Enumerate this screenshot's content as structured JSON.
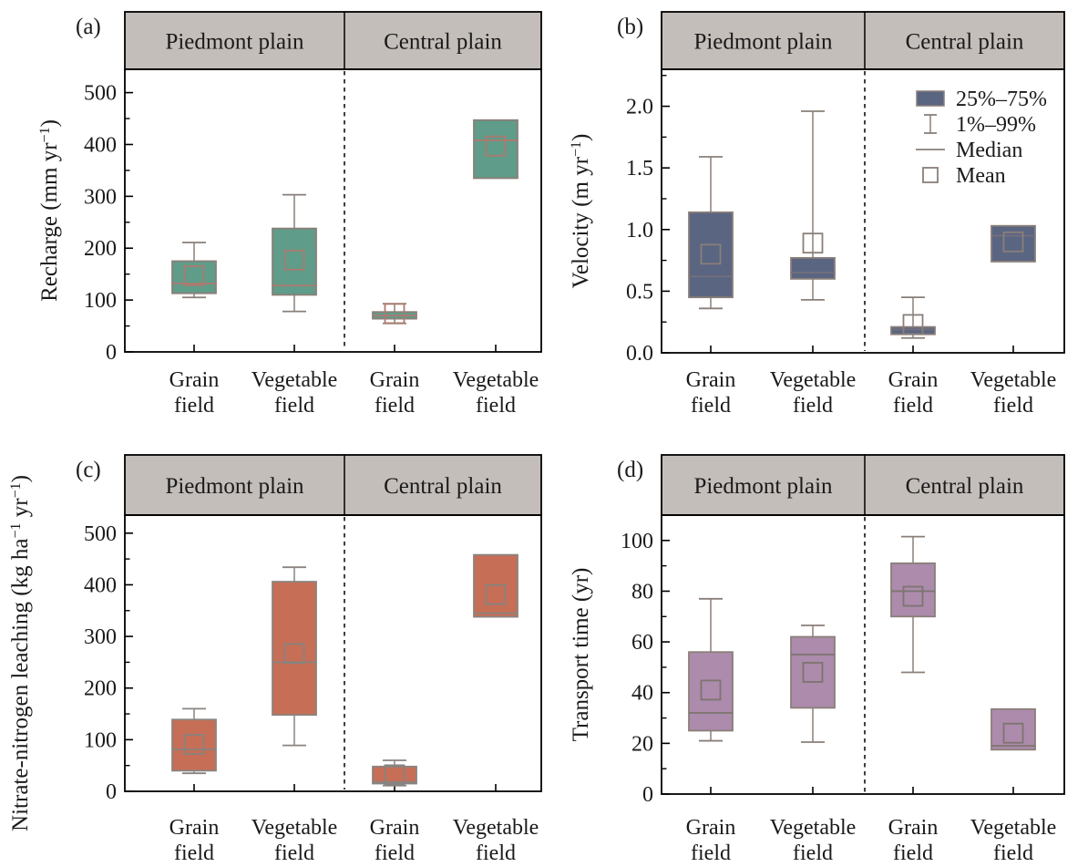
{
  "figure": {
    "background": "#ffffff",
    "region_headers": [
      "Piedmont plain",
      "Central plain"
    ],
    "category_labels": [
      "Grain field",
      "Vegetable field",
      "Grain field",
      "Vegetable field"
    ],
    "header_band_color": "#c4beba",
    "frame_color": "#000000"
  },
  "chart_data": [
    {
      "type": "box",
      "panel": "a",
      "panel_label": "(a)",
      "regions": [
        "Piedmont plain",
        "Central plain"
      ],
      "ylabel": "Recharge (mm yr⁻¹)",
      "ylim": [
        0,
        545
      ],
      "yticks": [
        0,
        100,
        200,
        300,
        400,
        500
      ],
      "ytick_labels": [
        "0",
        "100",
        "200",
        "300",
        "400",
        "500"
      ],
      "y_minor_step": 50,
      "categories": [
        "Grain field",
        "Vegetable field",
        "Grain field",
        "Vegetable field"
      ],
      "colors": {
        "box_fill": "#5f9c89",
        "edge": "#8a7f78",
        "median": "#aa7a6f",
        "mean": "#aa7a6f"
      },
      "boxes": [
        {
          "region": "Piedmont plain",
          "category": "Grain field",
          "p1": 105,
          "q1": 113,
          "median": 132,
          "mean": 147,
          "q3": 175,
          "p99": 211
        },
        {
          "region": "Piedmont plain",
          "category": "Vegetable field",
          "p1": 78,
          "q1": 110,
          "median": 128,
          "mean": 177,
          "q3": 238,
          "p99": 303
        },
        {
          "region": "Central plain",
          "category": "Grain field",
          "p1": 55,
          "q1": 64,
          "median": 70,
          "mean": 74,
          "q3": 77,
          "p99": 93
        },
        {
          "region": "Central plain",
          "category": "Vegetable field",
          "p1": null,
          "q1": 335,
          "median": 408,
          "mean": 397,
          "q3": 447,
          "p99": null
        }
      ]
    },
    {
      "type": "box",
      "panel": "b",
      "panel_label": "(b)",
      "regions": [
        "Piedmont plain",
        "Central plain"
      ],
      "ylabel": "Velocity (m yr⁻¹)",
      "ylim": [
        0,
        2.3
      ],
      "yticks": [
        0,
        0.5,
        1.0,
        1.5,
        2.0
      ],
      "ytick_labels": [
        "0.0",
        "0.5",
        "1.0",
        "1.5",
        "2.0"
      ],
      "y_minor_step": 0.25,
      "categories": [
        "Grain field",
        "Vegetable field",
        "Grain field",
        "Vegetable field"
      ],
      "colors": {
        "box_fill": "#5a6582",
        "edge": "#8a7f78",
        "median": "#73707c",
        "mean": "#8a7f78"
      },
      "legend": {
        "position": "top-right",
        "items": [
          {
            "symbol": "box",
            "label": "25%–75%"
          },
          {
            "symbol": "whisker",
            "label": "1%–99%"
          },
          {
            "symbol": "median",
            "label": "Median"
          },
          {
            "symbol": "mean",
            "label": "Mean"
          }
        ]
      },
      "boxes": [
        {
          "region": "Piedmont plain",
          "category": "Grain field",
          "p1": 0.36,
          "q1": 0.45,
          "median": 0.62,
          "mean": 0.8,
          "q3": 1.14,
          "p99": 1.59
        },
        {
          "region": "Piedmont plain",
          "category": "Vegetable field",
          "p1": 0.43,
          "q1": 0.6,
          "median": 0.65,
          "mean": 0.89,
          "q3": 0.77,
          "p99": 1.96
        },
        {
          "region": "Central plain",
          "category": "Grain field",
          "p1": 0.12,
          "q1": 0.15,
          "median": 0.19,
          "mean": 0.23,
          "q3": 0.21,
          "p99": 0.45
        },
        {
          "region": "Central plain",
          "category": "Vegetable field",
          "p1": null,
          "q1": 0.74,
          "median": 0.95,
          "mean": 0.9,
          "q3": 1.03,
          "p99": null
        }
      ]
    },
    {
      "type": "box",
      "panel": "c",
      "panel_label": "(c)",
      "regions": [
        "Piedmont plain",
        "Central plain"
      ],
      "ylabel": "Nitrate-nitrogen leaching (kg ha⁻¹ yr⁻¹)",
      "ylim": [
        0,
        535
      ],
      "yticks": [
        0,
        100,
        200,
        300,
        400,
        500
      ],
      "ytick_labels": [
        "0",
        "100",
        "200",
        "300",
        "400",
        "500"
      ],
      "y_minor_step": 50,
      "categories": [
        "Grain field",
        "Vegetable field",
        "Grain field",
        "Vegetable field"
      ],
      "colors": {
        "box_fill": "#c76e57",
        "edge": "#8a8480",
        "median": "#87837f",
        "mean": "#87837f"
      },
      "boxes": [
        {
          "region": "Piedmont plain",
          "category": "Grain field",
          "p1": 35,
          "q1": 40,
          "median": 81,
          "mean": 91,
          "q3": 139,
          "p99": 160
        },
        {
          "region": "Piedmont plain",
          "category": "Vegetable field",
          "p1": 89,
          "q1": 148,
          "median": 250,
          "mean": 267,
          "q3": 406,
          "p99": 434
        },
        {
          "region": "Central plain",
          "category": "Grain field",
          "p1": 11,
          "q1": 15,
          "median": 18,
          "mean": 32,
          "q3": 48,
          "p99": 60
        },
        {
          "region": "Central plain",
          "category": "Vegetable field",
          "p1": null,
          "q1": 338,
          "median": 345,
          "mean": 381,
          "q3": 458,
          "p99": null
        }
      ]
    },
    {
      "type": "box",
      "panel": "d",
      "panel_label": "(d)",
      "regions": [
        "Piedmont plain",
        "Central plain"
      ],
      "ylabel": "Transport time (yr)",
      "ylim": [
        0,
        110
      ],
      "yticks": [
        0,
        20,
        40,
        60,
        80,
        100
      ],
      "ytick_labels": [
        "0",
        "20",
        "40",
        "60",
        "80",
        "100"
      ],
      "y_minor_step": 10,
      "categories": [
        "Grain field",
        "Vegetable field",
        "Grain field",
        "Vegetable field"
      ],
      "colors": {
        "box_fill": "#ac8bac",
        "edge": "#8a7f78",
        "median": "#7d746f",
        "mean": "#7d746f"
      },
      "boxes": [
        {
          "region": "Piedmont plain",
          "category": "Grain field",
          "p1": 21,
          "q1": 25,
          "median": 32,
          "mean": 41,
          "q3": 56,
          "p99": 77
        },
        {
          "region": "Piedmont plain",
          "category": "Vegetable field",
          "p1": 20.5,
          "q1": 34,
          "median": 55,
          "mean": 48,
          "q3": 62,
          "p99": 66.5
        },
        {
          "region": "Central plain",
          "category": "Grain field",
          "p1": 48,
          "q1": 70,
          "median": 80,
          "mean": 78,
          "q3": 91,
          "p99": 101.5
        },
        {
          "region": "Central plain",
          "category": "Vegetable field",
          "p1": null,
          "q1": 17.5,
          "median": 19,
          "mean": 24,
          "q3": 33.5,
          "p99": null
        }
      ]
    }
  ]
}
